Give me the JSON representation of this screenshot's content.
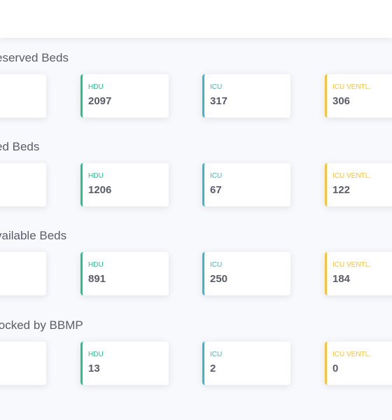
{
  "sections": [
    {
      "title": "eserved Beds",
      "cards": [
        {
          "label": "HDU",
          "value": "2097"
        },
        {
          "label": "ICU",
          "value": "317"
        },
        {
          "label": "ICU VENTL.",
          "value": "306"
        }
      ]
    },
    {
      "title": "ed Beds",
      "cards": [
        {
          "label": "HDU",
          "value": "1206"
        },
        {
          "label": "ICU",
          "value": "67"
        },
        {
          "label": "ICU VENTL.",
          "value": "122"
        }
      ]
    },
    {
      "title": "vailable Beds",
      "cards": [
        {
          "label": "HDU",
          "value": "891"
        },
        {
          "label": "ICU",
          "value": "250"
        },
        {
          "label": "ICU VENTL.",
          "value": "184"
        }
      ]
    },
    {
      "title": "locked by BBMP",
      "cards": [
        {
          "label": "HDU",
          "value": "13"
        },
        {
          "label": "ICU",
          "value": "2"
        },
        {
          "label": "ICU VENTL.",
          "value": "0"
        }
      ]
    }
  ],
  "colors": {
    "hdu_accent": "#1cc88a",
    "icu_accent": "#36b9cc",
    "ventilator_accent": "#f6c23e",
    "text": "#5a5c69"
  }
}
